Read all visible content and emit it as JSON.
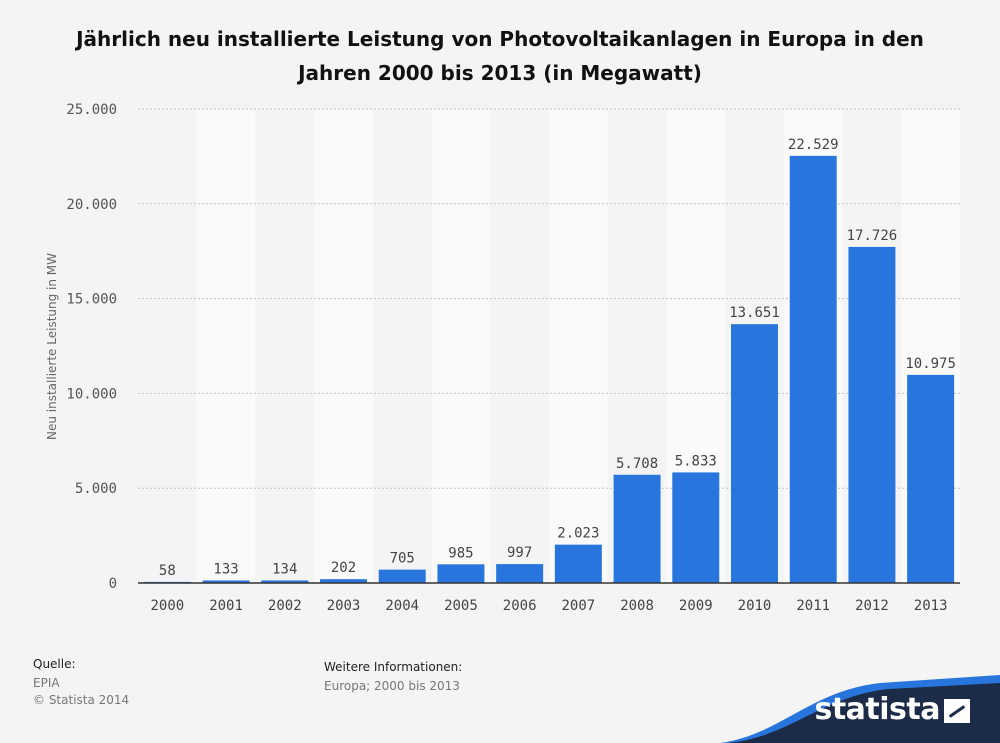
{
  "title_line1": "Jährlich neu installierte Leistung von Photovoltaikanlagen in Europa in den",
  "title_line2": "Jahren 2000 bis 2013 (in Megawatt)",
  "chart_data": {
    "type": "bar",
    "title": "Jährlich neu installierte Leistung von Photovoltaikanlagen in Europa in den Jahren 2000 bis 2013 (in Megawatt)",
    "xlabel": "",
    "ylabel": "Neu installierte Leistung in MW",
    "ylim": [
      0,
      25000
    ],
    "yticks": [
      0,
      5000,
      10000,
      15000,
      20000,
      25000
    ],
    "ytick_labels": [
      "0",
      "5.000",
      "10.000",
      "15.000",
      "20.000",
      "25.000"
    ],
    "categories": [
      "2000",
      "2001",
      "2002",
      "2003",
      "2004",
      "2005",
      "2006",
      "2007",
      "2008",
      "2009",
      "2010",
      "2011",
      "2012",
      "2013"
    ],
    "values": [
      58,
      133,
      134,
      202,
      705,
      985,
      997,
      2023,
      5708,
      5833,
      13651,
      22529,
      17726,
      10975
    ],
    "value_labels": [
      "58",
      "133",
      "134",
      "202",
      "705",
      "985",
      "997",
      "2.023",
      "5.708",
      "5.833",
      "13.651",
      "22.529",
      "17.726",
      "10.975"
    ],
    "bar_color": "#2876dd",
    "grid": true
  },
  "footer": {
    "source_heading": "Quelle:",
    "source_lines": [
      "EPIA",
      "© Statista 2014"
    ],
    "info_heading": "Weitere Informationen:",
    "info_value": "Europa; 2000 bis 2013"
  },
  "brand": {
    "name": "statista",
    "color": "#1c2b48",
    "accent": "#2876dd"
  }
}
